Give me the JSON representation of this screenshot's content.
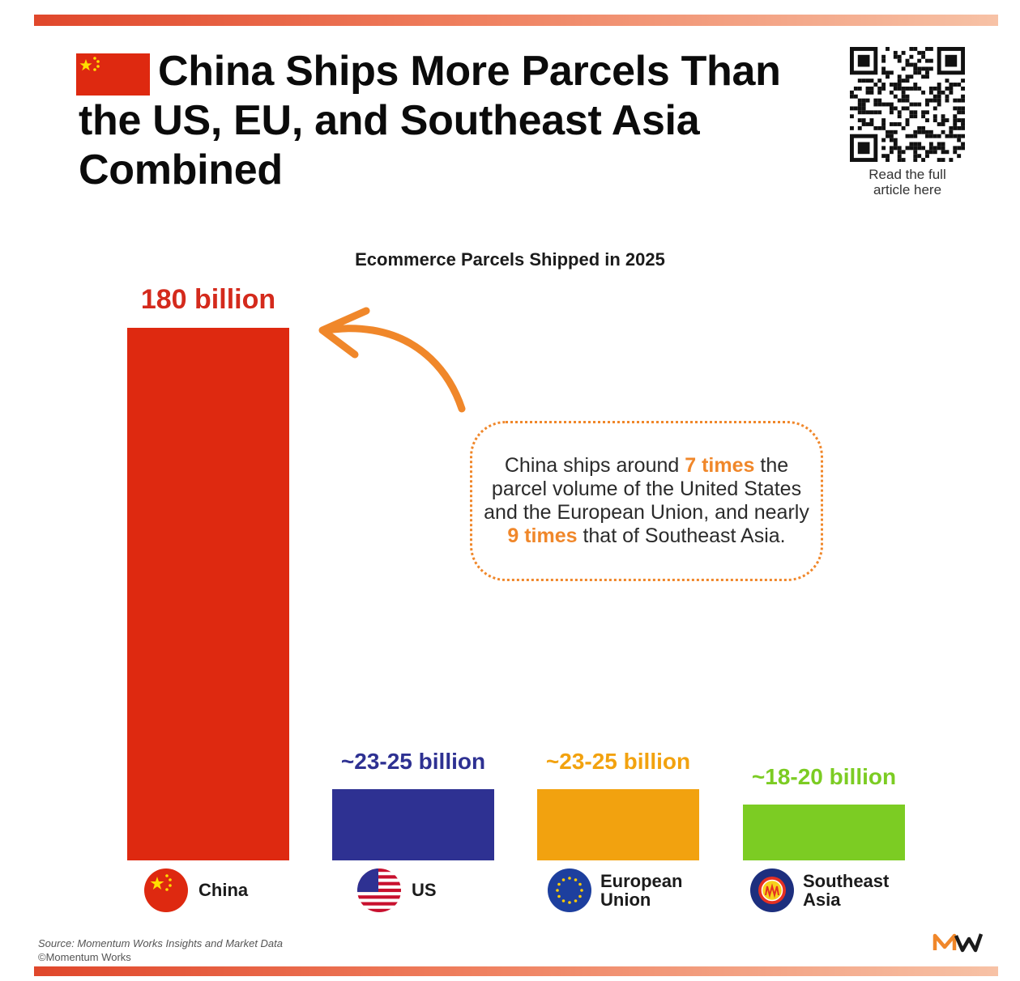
{
  "header": {
    "title_line1": "China Ships More Parcels Than",
    "title_line2": "the US, EU, and Southeast Asia",
    "title_line3": "Combined",
    "qr_caption_line1": "Read the full",
    "qr_caption_line2": "article here"
  },
  "callout": {
    "part1": "China ships around ",
    "highlight1": "7 times",
    "part2": " the parcel volume of the United States and the European Union, and nearly ",
    "highlight2": "9 times",
    "part3": " that of Southeast Asia."
  },
  "footer": {
    "source": "Source: Momentum Works Insights and Market Data",
    "copyright": "©Momentum Works"
  },
  "colors": {
    "china": "#de2910",
    "us": "#2e3192",
    "eu": "#f2a20f",
    "sea": "#7ccc23",
    "accent": "#f0872a"
  },
  "chart_data": {
    "type": "bar",
    "title": "Ecommerce Parcels Shipped in 2025",
    "ylabel": "",
    "xlabel": "",
    "unit": "billion parcels",
    "ylim": [
      0,
      180
    ],
    "categories": [
      "China",
      "US",
      "European Union",
      "Southeast Asia"
    ],
    "values": [
      180,
      24,
      24,
      19
    ],
    "data_labels": [
      "180 billion",
      "~23-25 billion",
      "~23-25 billion",
      "~18-20 billion"
    ],
    "bar_colors": [
      "#de2910",
      "#2e3192",
      "#f2a20f",
      "#7ccc23"
    ],
    "label_colors": [
      "#d42a1c",
      "#2e3192",
      "#f2a20f",
      "#7ccc23"
    ],
    "grid": false,
    "legend": "none"
  }
}
